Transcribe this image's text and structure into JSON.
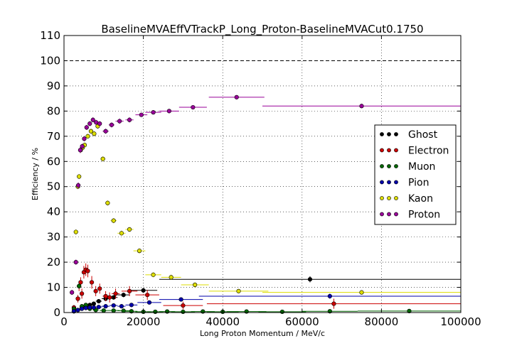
{
  "chart_data": {
    "type": "scatter",
    "title": "BaselineMVAEffVTrackP_Long_Proton-BaselineMVACut0.1750",
    "xlabel": "Long Proton Momentum / MeV/c",
    "ylabel": "Efficiency / %",
    "xlim": [
      0,
      100000
    ],
    "ylim": [
      0,
      110
    ],
    "x_ticks": [
      0,
      20000,
      40000,
      60000,
      80000,
      100000
    ],
    "y_ticks": [
      0,
      10,
      20,
      30,
      40,
      50,
      60,
      70,
      80,
      90,
      100,
      110
    ],
    "reference_line": 100,
    "grid": true,
    "legend_position": "center-right",
    "series": [
      {
        "name": "Ghost",
        "color": "#000000",
        "points": [
          {
            "x": 2500,
            "y": 0.5,
            "xerr": 500,
            "yerr": 0.3
          },
          {
            "x": 3500,
            "y": 1.0,
            "xerr": 500,
            "yerr": 0.4
          },
          {
            "x": 4500,
            "y": 2.0,
            "xerr": 500,
            "yerr": 0.5
          },
          {
            "x": 5500,
            "y": 2.5,
            "xerr": 500,
            "yerr": 0.5
          },
          {
            "x": 6500,
            "y": 3.0,
            "xerr": 500,
            "yerr": 0.5
          },
          {
            "x": 7500,
            "y": 3.5,
            "xerr": 500,
            "yerr": 0.6
          },
          {
            "x": 8750,
            "y": 4.5,
            "xerr": 750,
            "yerr": 0.6
          },
          {
            "x": 10500,
            "y": 5.5,
            "xerr": 1000,
            "yerr": 0.7
          },
          {
            "x": 12500,
            "y": 6.0,
            "xerr": 1000,
            "yerr": 0.8
          },
          {
            "x": 15000,
            "y": 7.0,
            "xerr": 1500,
            "yerr": 0.9
          },
          {
            "x": 20000,
            "y": 8.8,
            "xerr": 3500,
            "yerr": 1.0
          },
          {
            "x": 62000,
            "y": 13.2,
            "xerr": 38000,
            "yerr": 1.2
          }
        ]
      },
      {
        "name": "Electron",
        "color": "#cc0000",
        "points": [
          {
            "x": 2500,
            "y": 2.0,
            "xerr": 500,
            "yerr": 1.0
          },
          {
            "x": 3500,
            "y": 5.5,
            "xerr": 500,
            "yerr": 1.5
          },
          {
            "x": 3800,
            "y": 10.5,
            "xerr": 300,
            "yerr": 2.0
          },
          {
            "x": 4200,
            "y": 12.0,
            "xerr": 300,
            "yerr": 2.0
          },
          {
            "x": 4500,
            "y": 7.5,
            "xerr": 300,
            "yerr": 2.0
          },
          {
            "x": 5000,
            "y": 16.0,
            "xerr": 400,
            "yerr": 2.5
          },
          {
            "x": 5500,
            "y": 17.0,
            "xerr": 400,
            "yerr": 2.5
          },
          {
            "x": 6000,
            "y": 16.5,
            "xerr": 400,
            "yerr": 2.5
          },
          {
            "x": 7000,
            "y": 12.0,
            "xerr": 500,
            "yerr": 2.5
          },
          {
            "x": 8000,
            "y": 8.5,
            "xerr": 500,
            "yerr": 2.0
          },
          {
            "x": 9000,
            "y": 9.5,
            "xerr": 500,
            "yerr": 2.0
          },
          {
            "x": 10500,
            "y": 6.5,
            "xerr": 750,
            "yerr": 2.0
          },
          {
            "x": 11500,
            "y": 6.0,
            "xerr": 750,
            "yerr": 2.0
          },
          {
            "x": 13000,
            "y": 7.5,
            "xerr": 1000,
            "yerr": 2.0
          },
          {
            "x": 16500,
            "y": 8.5,
            "xerr": 2000,
            "yerr": 2.0
          },
          {
            "x": 21000,
            "y": 7.0,
            "xerr": 3000,
            "yerr": 2.0
          },
          {
            "x": 30000,
            "y": 2.8,
            "xerr": 5000,
            "yerr": 1.5
          },
          {
            "x": 68000,
            "y": 3.5,
            "xerr": 32000,
            "yerr": 2.0
          }
        ]
      },
      {
        "name": "Muon",
        "color": "#006600",
        "points": [
          {
            "x": 2500,
            "y": 1.5,
            "xerr": 500,
            "yerr": 0.5
          },
          {
            "x": 3800,
            "y": 10.5,
            "xerr": 300,
            "yerr": 1.0
          },
          {
            "x": 4500,
            "y": 2.5,
            "xerr": 400,
            "yerr": 0.5
          },
          {
            "x": 5500,
            "y": 3.0,
            "xerr": 500,
            "yerr": 0.5
          },
          {
            "x": 6500,
            "y": 1.5,
            "xerr": 500,
            "yerr": 0.5
          },
          {
            "x": 8000,
            "y": 1.0,
            "xerr": 750,
            "yerr": 0.3
          },
          {
            "x": 10000,
            "y": 0.8,
            "xerr": 1000,
            "yerr": 0.3
          },
          {
            "x": 12500,
            "y": 0.8,
            "xerr": 1500,
            "yerr": 0.3
          },
          {
            "x": 15000,
            "y": 0.7,
            "xerr": 1500,
            "yerr": 0.3
          },
          {
            "x": 17000,
            "y": 0.5,
            "xerr": 1500,
            "yerr": 0.3
          },
          {
            "x": 20000,
            "y": 0.3,
            "xerr": 2000,
            "yerr": 0.2
          },
          {
            "x": 23000,
            "y": 0.3,
            "xerr": 2000,
            "yerr": 0.2
          },
          {
            "x": 26000,
            "y": 0.4,
            "xerr": 2000,
            "yerr": 0.2
          },
          {
            "x": 30000,
            "y": 0.3,
            "xerr": 3000,
            "yerr": 0.2
          },
          {
            "x": 35000,
            "y": 0.4,
            "xerr": 3000,
            "yerr": 0.2
          },
          {
            "x": 40000,
            "y": 0.3,
            "xerr": 4000,
            "yerr": 0.2
          },
          {
            "x": 46000,
            "y": 0.4,
            "xerr": 5000,
            "yerr": 0.2
          },
          {
            "x": 55000,
            "y": 0.3,
            "xerr": 6000,
            "yerr": 0.2
          },
          {
            "x": 67000,
            "y": 0.5,
            "xerr": 7000,
            "yerr": 0.2
          },
          {
            "x": 87000,
            "y": 0.6,
            "xerr": 13000,
            "yerr": 0.3
          }
        ]
      },
      {
        "name": "Pion",
        "color": "#0000aa",
        "points": [
          {
            "x": 2500,
            "y": 0.5,
            "xerr": 500,
            "yerr": 0.3
          },
          {
            "x": 3500,
            "y": 1.0,
            "xerr": 500,
            "yerr": 0.3
          },
          {
            "x": 4500,
            "y": 1.5,
            "xerr": 500,
            "yerr": 0.3
          },
          {
            "x": 5500,
            "y": 1.8,
            "xerr": 500,
            "yerr": 0.4
          },
          {
            "x": 6500,
            "y": 2.0,
            "xerr": 500,
            "yerr": 0.4
          },
          {
            "x": 7500,
            "y": 2.0,
            "xerr": 500,
            "yerr": 0.4
          },
          {
            "x": 8750,
            "y": 2.2,
            "xerr": 750,
            "yerr": 0.4
          },
          {
            "x": 10500,
            "y": 2.5,
            "xerr": 1000,
            "yerr": 0.5
          },
          {
            "x": 12500,
            "y": 2.8,
            "xerr": 1000,
            "yerr": 0.5
          },
          {
            "x": 14500,
            "y": 2.5,
            "xerr": 1000,
            "yerr": 0.5
          },
          {
            "x": 17000,
            "y": 3.0,
            "xerr": 1500,
            "yerr": 0.6
          },
          {
            "x": 21500,
            "y": 4.0,
            "xerr": 3000,
            "yerr": 0.7
          },
          {
            "x": 29500,
            "y": 5.2,
            "xerr": 5500,
            "yerr": 0.8
          },
          {
            "x": 67000,
            "y": 6.5,
            "xerr": 33000,
            "yerr": 1.0
          }
        ]
      },
      {
        "name": "Kaon",
        "color": "#dddd00",
        "points": [
          {
            "x": 3000,
            "y": 32.0,
            "xerr": 300,
            "yerr": 1.0
          },
          {
            "x": 3500,
            "y": 50.0,
            "xerr": 250,
            "yerr": 1.0
          },
          {
            "x": 3800,
            "y": 54.0,
            "xerr": 250,
            "yerr": 1.0
          },
          {
            "x": 4200,
            "y": 64.5,
            "xerr": 250,
            "yerr": 1.0
          },
          {
            "x": 4700,
            "y": 65.5,
            "xerr": 250,
            "yerr": 1.0
          },
          {
            "x": 5200,
            "y": 66.5,
            "xerr": 250,
            "yerr": 1.0
          },
          {
            "x": 6000,
            "y": 70.0,
            "xerr": 400,
            "yerr": 1.0
          },
          {
            "x": 6800,
            "y": 72.0,
            "xerr": 400,
            "yerr": 1.0
          },
          {
            "x": 7600,
            "y": 71.0,
            "xerr": 400,
            "yerr": 1.0
          },
          {
            "x": 8500,
            "y": 74.0,
            "xerr": 500,
            "yerr": 1.0
          },
          {
            "x": 9800,
            "y": 61.0,
            "xerr": 600,
            "yerr": 1.0
          },
          {
            "x": 11000,
            "y": 43.5,
            "xerr": 600,
            "yerr": 1.0
          },
          {
            "x": 12500,
            "y": 36.5,
            "xerr": 750,
            "yerr": 1.0
          },
          {
            "x": 14500,
            "y": 31.5,
            "xerr": 1000,
            "yerr": 1.0
          },
          {
            "x": 16500,
            "y": 33.0,
            "xerr": 1000,
            "yerr": 1.0
          },
          {
            "x": 19000,
            "y": 24.5,
            "xerr": 1500,
            "yerr": 1.0
          },
          {
            "x": 22500,
            "y": 15.0,
            "xerr": 2000,
            "yerr": 1.0
          },
          {
            "x": 27000,
            "y": 14.0,
            "xerr": 2500,
            "yerr": 1.0
          },
          {
            "x": 33000,
            "y": 11.0,
            "xerr": 3500,
            "yerr": 1.0
          },
          {
            "x": 44000,
            "y": 8.5,
            "xerr": 7500,
            "yerr": 0.8
          },
          {
            "x": 75000,
            "y": 8.0,
            "xerr": 25000,
            "yerr": 0.8
          }
        ]
      },
      {
        "name": "Proton",
        "color": "#990099",
        "points": [
          {
            "x": 2000,
            "y": 8.0,
            "xerr": 500,
            "yerr": 1.0
          },
          {
            "x": 3000,
            "y": 20.0,
            "xerr": 300,
            "yerr": 1.0
          },
          {
            "x": 3600,
            "y": 50.5,
            "xerr": 250,
            "yerr": 1.2
          },
          {
            "x": 4100,
            "y": 64.5,
            "xerr": 250,
            "yerr": 1.2
          },
          {
            "x": 4600,
            "y": 66.0,
            "xerr": 250,
            "yerr": 1.0
          },
          {
            "x": 5100,
            "y": 69.0,
            "xerr": 250,
            "yerr": 1.0
          },
          {
            "x": 5700,
            "y": 73.5,
            "xerr": 400,
            "yerr": 1.0
          },
          {
            "x": 6500,
            "y": 75.0,
            "xerr": 400,
            "yerr": 1.0
          },
          {
            "x": 7300,
            "y": 76.5,
            "xerr": 400,
            "yerr": 1.0
          },
          {
            "x": 8100,
            "y": 75.5,
            "xerr": 400,
            "yerr": 1.0
          },
          {
            "x": 9000,
            "y": 75.0,
            "xerr": 500,
            "yerr": 1.0
          },
          {
            "x": 10500,
            "y": 72.0,
            "xerr": 750,
            "yerr": 1.0
          },
          {
            "x": 12000,
            "y": 74.5,
            "xerr": 750,
            "yerr": 1.0
          },
          {
            "x": 14000,
            "y": 76.0,
            "xerr": 1000,
            "yerr": 1.0
          },
          {
            "x": 16500,
            "y": 76.5,
            "xerr": 1000,
            "yerr": 1.0
          },
          {
            "x": 19500,
            "y": 78.5,
            "xerr": 1500,
            "yerr": 0.8
          },
          {
            "x": 22500,
            "y": 79.5,
            "xerr": 2000,
            "yerr": 0.8
          },
          {
            "x": 26500,
            "y": 80.0,
            "xerr": 2500,
            "yerr": 0.8
          },
          {
            "x": 32500,
            "y": 81.5,
            "xerr": 3500,
            "yerr": 0.8
          },
          {
            "x": 43500,
            "y": 85.5,
            "xerr": 7000,
            "yerr": 0.8
          },
          {
            "x": 75000,
            "y": 82.0,
            "xerr": 25000,
            "yerr": 0.8
          }
        ]
      }
    ]
  }
}
